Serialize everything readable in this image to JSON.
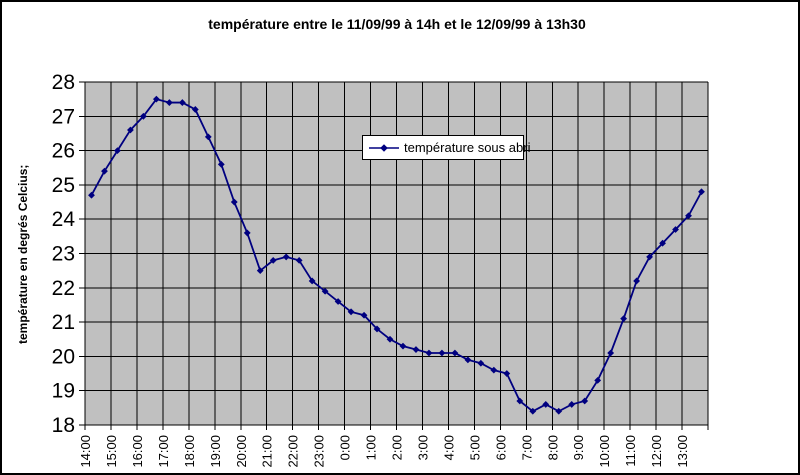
{
  "window": {
    "background_color": "#ffffff",
    "border_color": "#000000"
  },
  "chart_data": {
    "type": "line",
    "title": "température entre le 11/09/99 à 14h et le 12/09/99 à 13h30",
    "ylabel": "température en degrés Celcius;",
    "xlabel": "",
    "legend_label": "température sous abri",
    "legend_position": "inside-top-center",
    "grid": true,
    "plot_bg_color": "#c0c0c0",
    "grid_color": "#000000",
    "line_color": "#000080",
    "text_color": "#000000",
    "marker": "diamond",
    "ylim": [
      18,
      28
    ],
    "y_ticks": [
      28,
      27,
      26,
      25,
      24,
      23,
      22,
      21,
      20,
      19,
      18
    ],
    "x_tick_labels": [
      "14:00",
      "15:00",
      "16:00",
      "17:00",
      "18:00",
      "19:00",
      "20:00",
      "21:00",
      "22:00",
      "23:00",
      "0:00",
      "1:00",
      "2:00",
      "3:00",
      "4:00",
      "5:00",
      "6:00",
      "7:00",
      "8:00",
      "9:00",
      "10:00",
      "11:00",
      "12:00",
      "13:00"
    ],
    "x": [
      "14:00",
      "14:30",
      "15:00",
      "15:30",
      "16:00",
      "16:30",
      "17:00",
      "17:30",
      "18:00",
      "18:30",
      "19:00",
      "19:30",
      "20:00",
      "20:30",
      "21:00",
      "21:30",
      "22:00",
      "22:30",
      "23:00",
      "23:30",
      "0:00",
      "0:30",
      "1:00",
      "1:30",
      "2:00",
      "2:30",
      "3:00",
      "3:30",
      "4:00",
      "4:30",
      "5:00",
      "5:30",
      "6:00",
      "6:30",
      "7:00",
      "7:30",
      "8:00",
      "8:30",
      "9:00",
      "9:30",
      "10:00",
      "10:30",
      "11:00",
      "11:30",
      "12:00",
      "12:30",
      "13:00",
      "13:30"
    ],
    "series": [
      {
        "name": "température sous abri",
        "values": [
          24.7,
          25.4,
          26.0,
          26.6,
          27.0,
          27.5,
          27.4,
          27.4,
          27.2,
          26.4,
          25.6,
          24.5,
          23.6,
          22.5,
          22.8,
          22.9,
          22.8,
          22.2,
          21.9,
          21.6,
          21.3,
          21.2,
          20.8,
          20.5,
          20.3,
          20.2,
          20.1,
          20.1,
          20.1,
          19.9,
          19.8,
          19.6,
          19.5,
          18.7,
          18.4,
          18.6,
          18.4,
          18.6,
          18.7,
          19.3,
          20.1,
          21.1,
          22.2,
          22.9,
          23.3,
          23.7,
          24.1,
          24.8
        ]
      }
    ]
  }
}
